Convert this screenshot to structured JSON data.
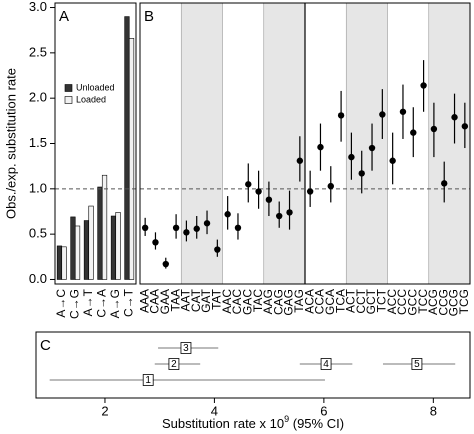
{
  "chart_data": [
    {
      "type": "bar",
      "panel_label": "A",
      "ylabel": "Obs./exp. substitution rate",
      "categories": [
        "A→C",
        "C→G",
        "A→T",
        "C→A",
        "A→G",
        "C→T"
      ],
      "series": [
        {
          "name": "Unloaded",
          "color": "#333333",
          "values": [
            0.37,
            0.69,
            0.65,
            1.02,
            0.7,
            2.9
          ]
        },
        {
          "name": "Loaded",
          "color": "#f2f2f2",
          "values": [
            0.36,
            0.59,
            0.81,
            1.15,
            0.74,
            2.66
          ]
        }
      ],
      "ylim": [
        -0.05,
        3.05
      ],
      "yticks": [
        {
          "value": 0,
          "label": "0.0"
        },
        {
          "value": 0.5,
          "label": "0.5"
        },
        {
          "value": 1,
          "label": "1.0"
        },
        {
          "value": 1.5,
          "label": "1.5"
        },
        {
          "value": 2,
          "label": "2.0"
        },
        {
          "value": 2.5,
          "label": "2.5"
        },
        {
          "value": 3,
          "label": "3.0"
        }
      ],
      "refline": 1
    },
    {
      "type": "errorbar",
      "panel_label": "B",
      "color": "#000000",
      "categories": [
        "AAA",
        "CAA",
        "GAA",
        "TAA",
        "AAT",
        "CAT",
        "GAT",
        "TAT",
        "AAC",
        "CAC",
        "GAC",
        "TAC",
        "AAG",
        "CAG",
        "GAG",
        "TAG",
        "ACA",
        "CCA",
        "GCA",
        "TCA",
        "ACT",
        "CCT",
        "GCT",
        "TCT",
        "ACC",
        "CCC",
        "GCC",
        "TCC",
        "ACG",
        "CCG",
        "GCG",
        "TCG"
      ],
      "values": [
        0.57,
        0.41,
        0.17,
        0.57,
        0.52,
        0.56,
        0.62,
        0.33,
        0.72,
        0.57,
        1.05,
        0.97,
        0.88,
        0.7,
        0.74,
        1.31,
        0.97,
        1.46,
        1.03,
        1.81,
        1.35,
        1.17,
        1.45,
        1.82,
        1.31,
        1.85,
        1.62,
        2.14,
        1.66,
        1.06,
        1.79,
        1.69
      ],
      "lower": [
        0.48,
        0.33,
        0.12,
        0.45,
        0.42,
        0.45,
        0.5,
        0.25,
        0.55,
        0.44,
        0.85,
        0.78,
        0.7,
        0.57,
        0.55,
        1.08,
        0.8,
        1.2,
        0.85,
        1.52,
        1.1,
        0.95,
        1.2,
        1.55,
        1.05,
        1.55,
        1.35,
        1.85,
        1.35,
        0.85,
        1.5,
        1.45
      ],
      "upper": [
        0.68,
        0.52,
        0.24,
        0.72,
        0.65,
        0.7,
        0.76,
        0.44,
        0.92,
        0.73,
        1.28,
        1.2,
        1.08,
        0.86,
        0.98,
        1.58,
        1.2,
        1.72,
        1.25,
        2.08,
        1.62,
        1.42,
        1.72,
        2.1,
        1.62,
        2.15,
        1.9,
        2.42,
        1.95,
        1.3,
        2.05,
        1.95
      ],
      "ylim": [
        -0.05,
        3.05
      ],
      "refline": 1
    },
    {
      "type": "interval",
      "panel_label": "C",
      "labels": [
        "1",
        "2",
        "3",
        "4",
        "5"
      ],
      "values": [
        2.79,
        3.26,
        3.48,
        6.04,
        7.7
      ],
      "lower": [
        0.99,
        2.91,
        2.97,
        5.56,
        7.08
      ],
      "upper": [
        6.02,
        3.74,
        4.07,
        6.52,
        8.4
      ],
      "xlim": [
        0.74,
        8.67
      ],
      "xticks": [
        2,
        4,
        6,
        8
      ],
      "xlabel": [
        "Substitution rate x 10",
        "9",
        " (95% CI)"
      ]
    }
  ]
}
